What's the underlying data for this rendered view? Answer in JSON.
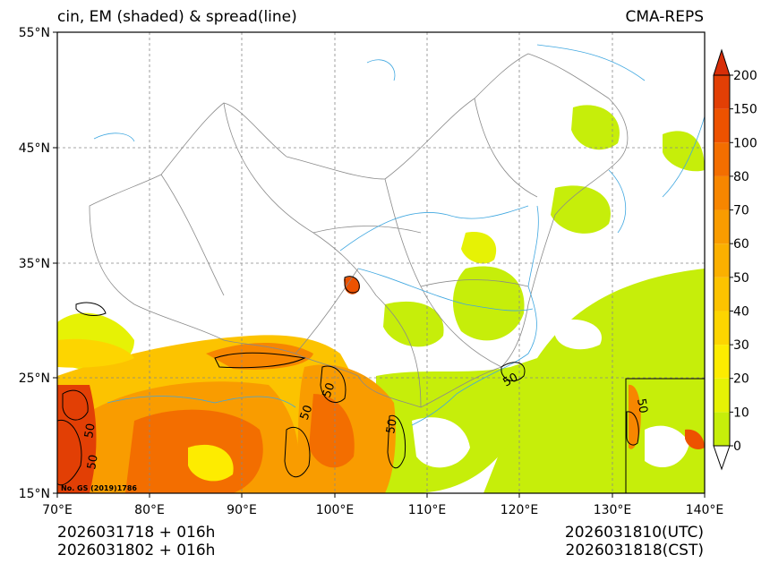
{
  "title_left": "cin, EM (shaded) & spread(line)",
  "title_right": "CMA-REPS",
  "lat_labels": [
    "55°N",
    "45°N",
    "35°N",
    "25°N",
    "15°N"
  ],
  "lon_labels": [
    "70°E",
    "80°E",
    "90°E",
    "100°E",
    "110°E",
    "120°E",
    "130°E",
    "140°E"
  ],
  "colorbar": {
    "labels": [
      "0",
      "10",
      "20",
      "30",
      "40",
      "50",
      "60",
      "70",
      "80",
      "100",
      "150",
      "200"
    ],
    "colors": [
      "#c6ee0a",
      "#e6f205",
      "#fdec00",
      "#fdd500",
      "#fcc300",
      "#fbb000",
      "#f99c00",
      "#f78600",
      "#f36e00",
      "#ed5200",
      "#e23f05",
      "#d82e08"
    ]
  },
  "contour_label": "50",
  "license_text": "No. GS (2019)1786",
  "footer": {
    "left_line1": "2026031718  +  016h",
    "left_line2": "2026031802  +  016h",
    "right_line1": "2026031810(UTC)",
    "right_line2": "2026031818(CST)"
  },
  "colors": {
    "coast": "#3fa7e0",
    "border": "#8a8a8a",
    "grid": "#888888"
  }
}
